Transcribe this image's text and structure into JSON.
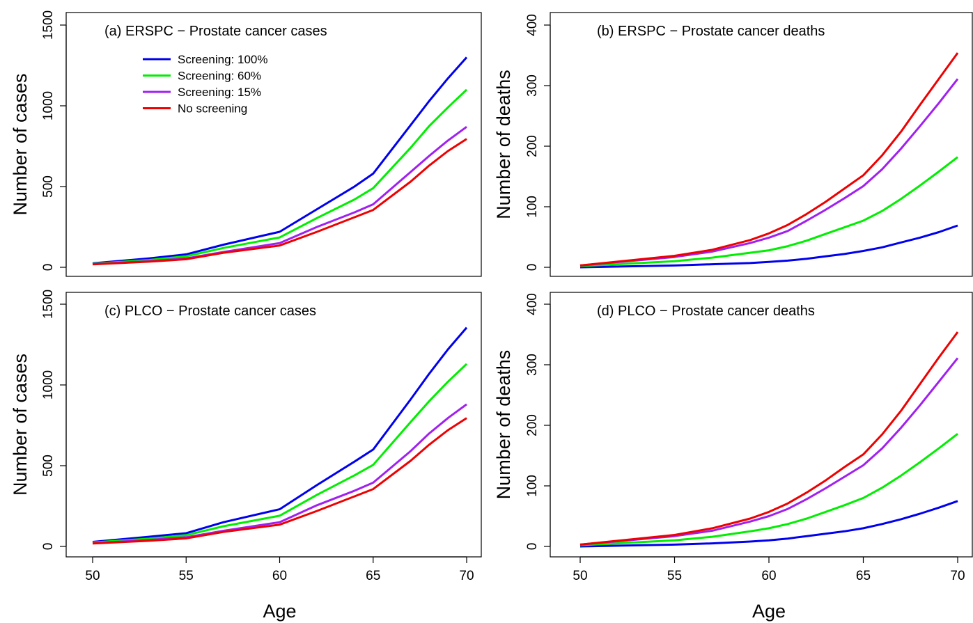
{
  "chart_data": [
    {
      "type": "line",
      "title": "(a) ERSPC  − Prostate cancer cases",
      "xlabel": "",
      "ylabel": "Number of cases",
      "xlim": [
        50,
        70
      ],
      "ylim": [
        0,
        1500
      ],
      "xticks": [
        "50",
        "55",
        "60",
        "65",
        "70"
      ],
      "yticks": [
        "0",
        "500",
        "1000",
        "1500"
      ],
      "show_xticks": false,
      "x": [
        50,
        53,
        55,
        57,
        60,
        62,
        64,
        65,
        67,
        68,
        69,
        70
      ],
      "series": [
        {
          "name": "Screening: 100%",
          "color": "#0000ee",
          "values": [
            25,
            55,
            80,
            140,
            220,
            360,
            500,
            580,
            880,
            1030,
            1170,
            1300
          ]
        },
        {
          "name": "Screening: 60%",
          "color": "#00ee00",
          "values": [
            22,
            45,
            68,
            120,
            185,
            305,
            420,
            490,
            740,
            875,
            990,
            1100
          ]
        },
        {
          "name": "Screening: 15%",
          "color": "#a020f0",
          "values": [
            20,
            38,
            55,
            95,
            150,
            250,
            340,
            390,
            590,
            690,
            785,
            870
          ]
        },
        {
          "name": "No screening",
          "color": "#ee0000",
          "values": [
            18,
            35,
            50,
            90,
            135,
            220,
            310,
            355,
            530,
            630,
            720,
            795
          ]
        }
      ],
      "legend": "top-left"
    },
    {
      "type": "line",
      "title": "(b) ERSPC  − Prostate cancer deaths",
      "xlabel": "",
      "ylabel": "Number of deaths",
      "xlim": [
        50,
        70
      ],
      "ylim": [
        0,
        400
      ],
      "xticks": [
        "50",
        "55",
        "60",
        "65",
        "70"
      ],
      "yticks": [
        "0",
        "100",
        "200",
        "300",
        "400"
      ],
      "show_xticks": false,
      "x": [
        50,
        55,
        57,
        59,
        60,
        61,
        62,
        63,
        64,
        65,
        66,
        67,
        68,
        69,
        70
      ],
      "series": [
        {
          "name": "Screening: 100%",
          "color": "#0000ee",
          "values": [
            0,
            3,
            5,
            7,
            9,
            11,
            14,
            18,
            22,
            27,
            33,
            41,
            49,
            58,
            69
          ]
        },
        {
          "name": "Screening: 60%",
          "color": "#00ee00",
          "values": [
            2,
            10,
            16,
            24,
            28,
            35,
            44,
            55,
            66,
            77,
            93,
            113,
            135,
            158,
            182
          ]
        },
        {
          "name": "Screening: 15%",
          "color": "#a020f0",
          "values": [
            3,
            17,
            26,
            40,
            49,
            60,
            77,
            95,
            114,
            134,
            162,
            196,
            233,
            271,
            311
          ]
        },
        {
          "name": "No screening",
          "color": "#ee0000",
          "values": [
            3,
            19,
            29,
            45,
            56,
            70,
            88,
            108,
            130,
            152,
            185,
            224,
            268,
            311,
            354
          ]
        }
      ]
    },
    {
      "type": "line",
      "title": "(c) PLCO  − Prostate cancer cases",
      "xlabel": "Age",
      "ylabel": "Number of cases",
      "xlim": [
        50,
        70
      ],
      "ylim": [
        0,
        1500
      ],
      "xticks": [
        "50",
        "55",
        "60",
        "65",
        "70"
      ],
      "yticks": [
        "0",
        "500",
        "1000",
        "1500"
      ],
      "show_xticks": true,
      "x": [
        50,
        53,
        55,
        57,
        60,
        62,
        64,
        65,
        67,
        68,
        69,
        70
      ],
      "series": [
        {
          "name": "Screening: 100%",
          "color": "#0000ee",
          "values": [
            28,
            60,
            82,
            150,
            230,
            380,
            525,
            600,
            910,
            1070,
            1220,
            1355
          ]
        },
        {
          "name": "Screening: 60%",
          "color": "#00ee00",
          "values": [
            24,
            48,
            70,
            125,
            190,
            320,
            440,
            505,
            770,
            900,
            1020,
            1130
          ]
        },
        {
          "name": "Screening: 15%",
          "color": "#a020f0",
          "values": [
            20,
            40,
            57,
            97,
            150,
            255,
            345,
            395,
            590,
            700,
            795,
            880
          ]
        },
        {
          "name": "No screening",
          "color": "#ee0000",
          "values": [
            18,
            35,
            50,
            90,
            135,
            220,
            310,
            355,
            530,
            630,
            720,
            795
          ]
        }
      ]
    },
    {
      "type": "line",
      "title": "(d) PLCO  − Prostate cancer deaths",
      "xlabel": "Age",
      "ylabel": "Number of deaths",
      "xlim": [
        50,
        70
      ],
      "ylim": [
        0,
        400
      ],
      "xticks": [
        "50",
        "55",
        "60",
        "65",
        "70"
      ],
      "yticks": [
        "0",
        "100",
        "200",
        "300",
        "400"
      ],
      "show_xticks": true,
      "x": [
        50,
        55,
        57,
        59,
        60,
        61,
        62,
        63,
        64,
        65,
        66,
        67,
        68,
        69,
        70
      ],
      "series": [
        {
          "name": "Screening: 100%",
          "color": "#0000ee",
          "values": [
            0,
            3,
            5,
            8,
            10,
            13,
            17,
            21,
            25,
            30,
            37,
            45,
            54,
            64,
            75
          ]
        },
        {
          "name": "Screening: 60%",
          "color": "#00ee00",
          "values": [
            2,
            10,
            16,
            25,
            30,
            37,
            46,
            57,
            68,
            80,
            97,
            117,
            139,
            162,
            186
          ]
        },
        {
          "name": "Screening: 15%",
          "color": "#a020f0",
          "values": [
            3,
            17,
            26,
            41,
            50,
            62,
            78,
            96,
            115,
            134,
            162,
            196,
            233,
            272,
            311
          ]
        },
        {
          "name": "No screening",
          "color": "#ee0000",
          "values": [
            3,
            19,
            30,
            46,
            57,
            71,
            89,
            109,
            131,
            152,
            185,
            224,
            268,
            312,
            354
          ]
        }
      ]
    }
  ]
}
